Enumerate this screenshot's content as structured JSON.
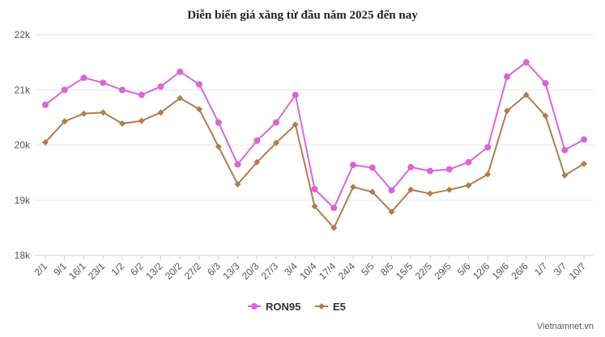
{
  "chart_data": {
    "type": "line",
    "title": "Diễn biến giá xăng từ đầu năm 2025 đến nay",
    "categories": [
      "2/1",
      "9/1",
      "16/1",
      "23/1",
      "1/2",
      "6/2",
      "13/2",
      "20/2",
      "27/2",
      "6/3",
      "13/3",
      "20/3",
      "27/3",
      "3/4",
      "10/4",
      "17/4",
      "24/4",
      "5/5",
      "8/5",
      "15/5",
      "22/5",
      "29/5",
      "5/6",
      "12/6",
      "19/6",
      "26/6",
      "1/7",
      "3/7",
      "10/7"
    ],
    "series": [
      {
        "name": "RON95",
        "color": "#d966d6",
        "marker": "circle",
        "values": [
          20730,
          21000,
          21220,
          21130,
          21000,
          20910,
          21060,
          21330,
          21100,
          20410,
          19650,
          20080,
          20410,
          20910,
          19200,
          18860,
          19640,
          19590,
          19180,
          19600,
          19530,
          19560,
          19690,
          19960,
          21240,
          21500,
          21120,
          19910,
          20100
        ]
      },
      {
        "name": "E5",
        "color": "#b07d4f",
        "marker": "diamond",
        "values": [
          20050,
          20430,
          20570,
          20590,
          20390,
          20440,
          20590,
          20850,
          20650,
          19970,
          19290,
          19690,
          20040,
          20370,
          18890,
          18500,
          19240,
          19150,
          18790,
          19190,
          19120,
          19190,
          19270,
          19470,
          20620,
          20910,
          20530,
          19450,
          19660
        ]
      }
    ],
    "ylim": [
      18000,
      22000
    ],
    "yticks": [
      {
        "value": 18000,
        "label": "18k"
      },
      {
        "value": 19000,
        "label": "19k"
      },
      {
        "value": 20000,
        "label": "20k"
      },
      {
        "value": 21000,
        "label": "21k"
      },
      {
        "value": 22000,
        "label": "22k"
      }
    ],
    "grid": true,
    "legend": "bottom-center"
  },
  "source": "Vietnamnet.vn"
}
